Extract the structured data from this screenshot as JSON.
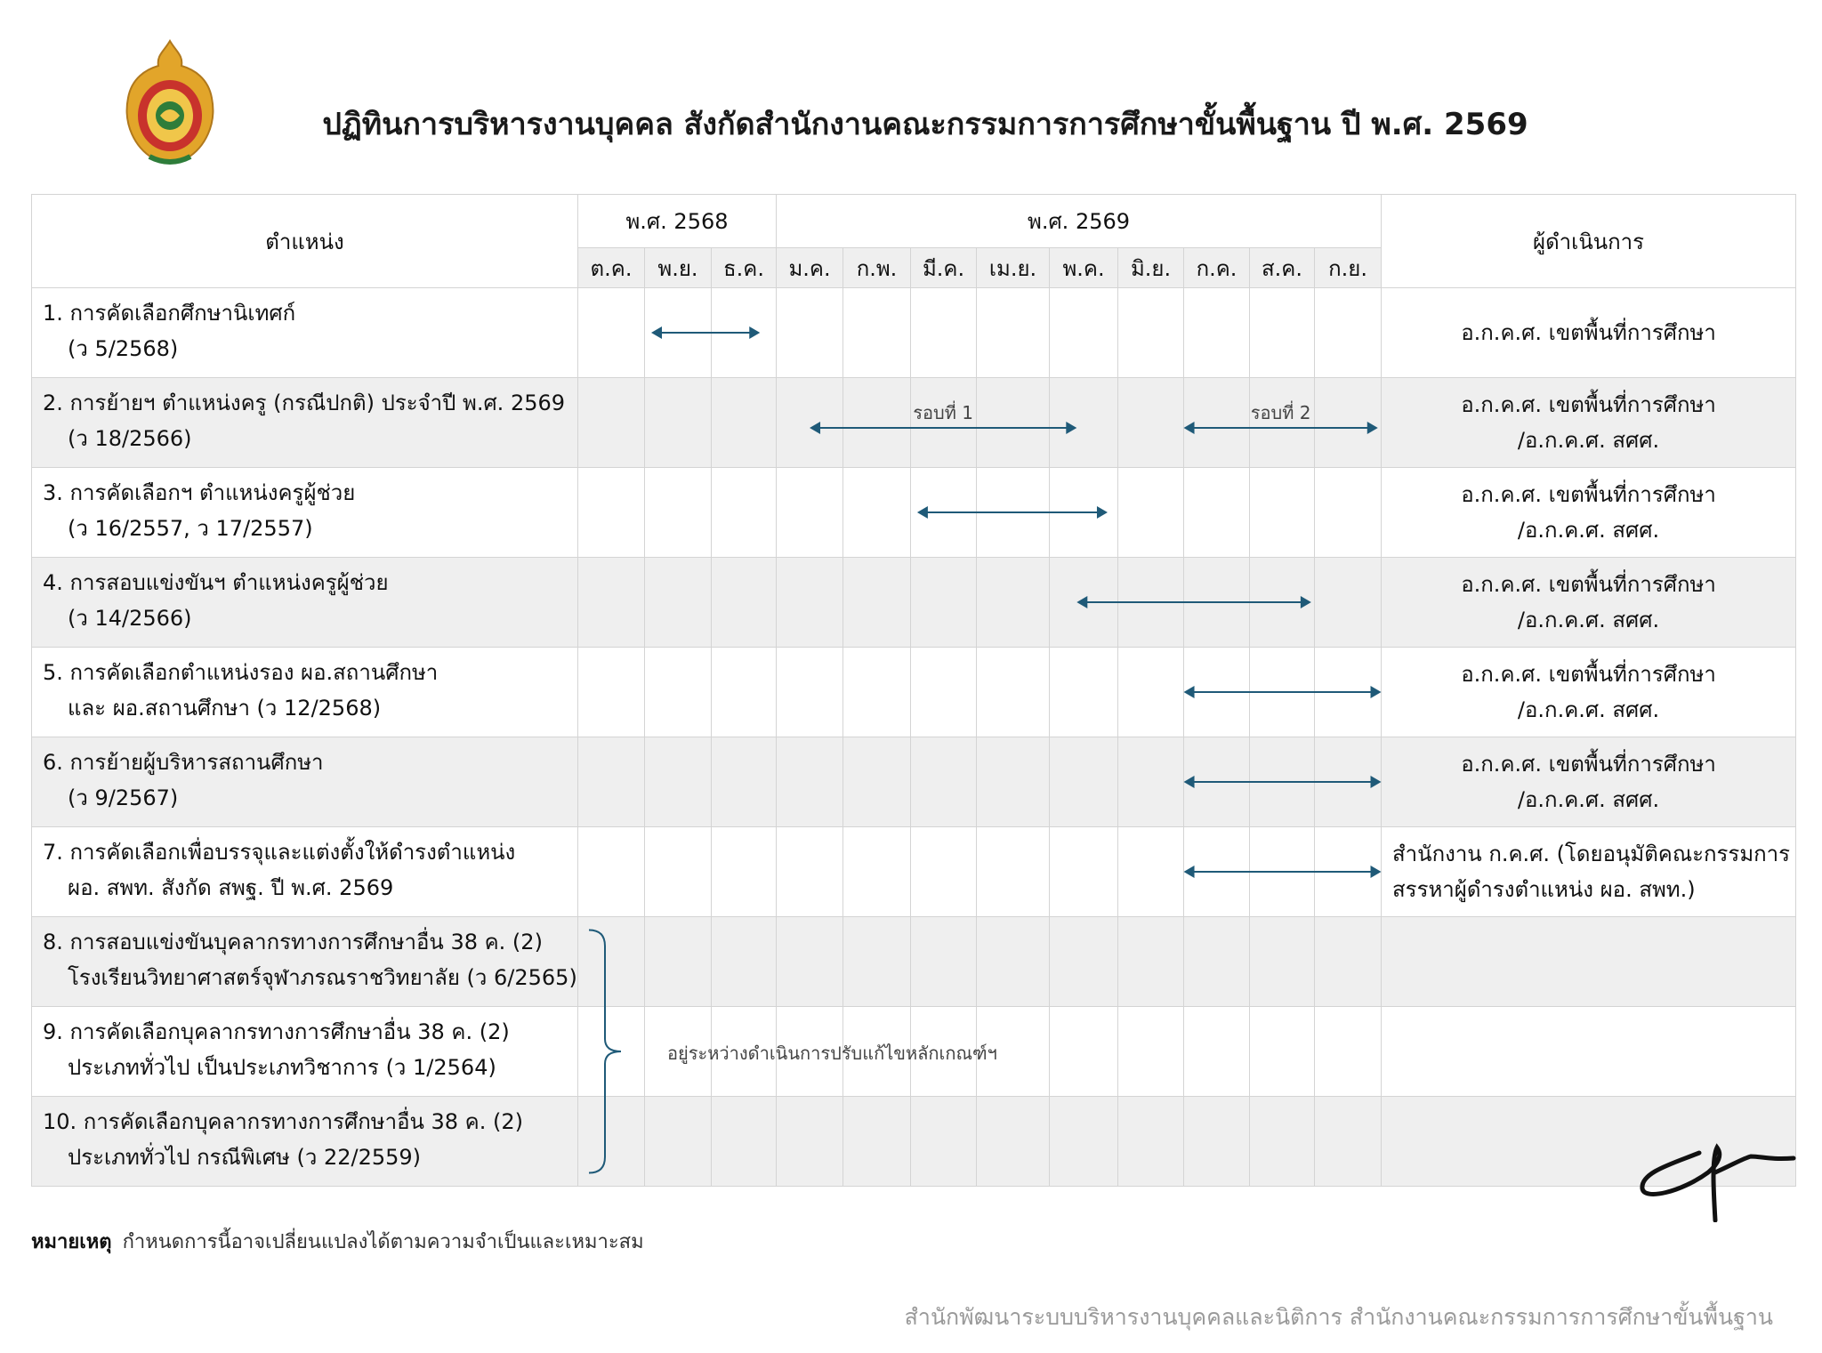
{
  "header": {
    "title": "ปฏิทินการบริหารงานบุคคล สังกัดสำนักงานคณะกรรมการการศึกษาขั้นพื้นฐาน ปี พ.ศ. 2569",
    "logo_icon": "obec-emblem-icon"
  },
  "table": {
    "position_header": "ตำแหน่ง",
    "operator_header": "ผู้ดำเนินการ",
    "years": [
      {
        "label": "พ.ศ. 2568",
        "span": 3
      },
      {
        "label": "พ.ศ. 2569",
        "span": 9
      }
    ],
    "months": [
      "ต.ค.",
      "พ.ย.",
      "ธ.ค.",
      "ม.ค.",
      "ก.พ.",
      "มี.ค.",
      "เม.ย.",
      "พ.ค.",
      "มิ.ย.",
      "ก.ค.",
      "ส.ค.",
      "ก.ย."
    ],
    "rows": [
      {
        "line1": "1. การคัดเลือกศึกษานิเทศก์",
        "line2": "(ว 5/2568)",
        "op1": "อ.ก.ค.ศ. เขตพื้นที่การศึกษา",
        "op2": "",
        "periods": [
          {
            "start_month": 1.1,
            "end_month": 2.75,
            "label": ""
          }
        ]
      },
      {
        "line1": "2. การย้ายฯ ตำแหน่งครู (กรณีปกติ) ประจำปี พ.ศ. 2569",
        "line2": "(ว 18/2566)",
        "op1": "อ.ก.ค.ศ. เขตพื้นที่การศึกษา",
        "op2": "/อ.ก.ค.ศ. สศศ.",
        "periods": [
          {
            "start_month": 3.5,
            "end_month": 7.4,
            "label": "รอบที่ 1"
          },
          {
            "start_month": 9.0,
            "end_month": 11.95,
            "label": "รอบที่ 2"
          }
        ]
      },
      {
        "line1": "3. การคัดเลือกฯ ตำแหน่งครูผู้ช่วย",
        "line2": "(ว 16/2557, ว 17/2557)",
        "op1": "อ.ก.ค.ศ. เขตพื้นที่การศึกษา",
        "op2": "/อ.ก.ค.ศ. สศศ.",
        "periods": [
          {
            "start_month": 5.1,
            "end_month": 7.85,
            "label": ""
          }
        ]
      },
      {
        "line1": "4. การสอบแข่งขันฯ ตำแหน่งครูผู้ช่วย",
        "line2": "(ว 14/2566)",
        "op1": "อ.ก.ค.ศ. เขตพื้นที่การศึกษา",
        "op2": "/อ.ก.ค.ศ. สศศ.",
        "periods": [
          {
            "start_month": 7.4,
            "end_month": 10.95,
            "label": ""
          }
        ]
      },
      {
        "line1": "5. การคัดเลือกตำแหน่งรอง ผอ.สถานศึกษา",
        "line2": "และ ผอ.สถานศึกษา (ว 12/2568)",
        "op1": "อ.ก.ค.ศ. เขตพื้นที่การศึกษา",
        "op2": "/อ.ก.ค.ศ. สศศ.",
        "periods": [
          {
            "start_month": 9.0,
            "end_month": 12.0,
            "label": ""
          }
        ]
      },
      {
        "line1": "6. การย้ายผู้บริหารสถานศึกษา",
        "line2": "(ว 9/2567)",
        "op1": "อ.ก.ค.ศ. เขตพื้นที่การศึกษา",
        "op2": "/อ.ก.ค.ศ. สศศ.",
        "periods": [
          {
            "start_month": 9.0,
            "end_month": 12.0,
            "label": ""
          }
        ]
      },
      {
        "line1": "7. การคัดเลือกเพื่อบรรจุและแต่งตั้งให้ดำรงตำแหน่ง",
        "line2": "ผอ. สพท. สังกัด สพฐ. ปี พ.ศ. 2569",
        "op1": "สำนักงาน ก.ค.ศ. (โดยอนุมัติคณะกรรมการ",
        "op2": "สรรหาผู้ดำรงตำแหน่ง ผอ. สพท.)",
        "periods": [
          {
            "start_month": 9.0,
            "end_month": 12.0,
            "label": ""
          }
        ]
      },
      {
        "line1": "8. การสอบแข่งขันบุคลากรทางการศึกษาอื่น 38 ค. (2)",
        "line2": "โรงเรียนวิทยาศาสตร์จุฬาภรณราชวิทยาลัย (ว 6/2565)",
        "op1": "",
        "op2": "",
        "periods": []
      },
      {
        "line1": "9. การคัดเลือกบุคลากรทางการศึกษาอื่น 38 ค. (2)",
        "line2": "ประเภททั่วไป เป็นประเภทวิชาการ (ว 1/2564)",
        "op1": "",
        "op2": "",
        "periods": []
      },
      {
        "line1": "10. การคัดเลือกบุคลากรทางการศึกษาอื่น 38 ค. (2)",
        "line2": "ประเภททั่วไป กรณีพิเศษ (ว 22/2559)",
        "op1": "",
        "op2": "",
        "periods": []
      }
    ],
    "pending_text": "อยู่ระหว่างดำเนินการปรับแก้ไขหลักเกณฑ์ฯ",
    "arrow_color": "#1f5a78"
  },
  "note": {
    "label": "หมายเหตุ",
    "text": "กำหนดการนี้อาจเปลี่ยนแปลงได้ตามความจำเป็นและเหมาะสม"
  },
  "footer": {
    "text": "สำนักพัฒนาระบบบริหารงานบุคคลและนิติการ สำนักงานคณะกรรมการการศึกษาขั้นพื้นฐาน"
  },
  "signature_icon": "handwritten-signature-icon"
}
